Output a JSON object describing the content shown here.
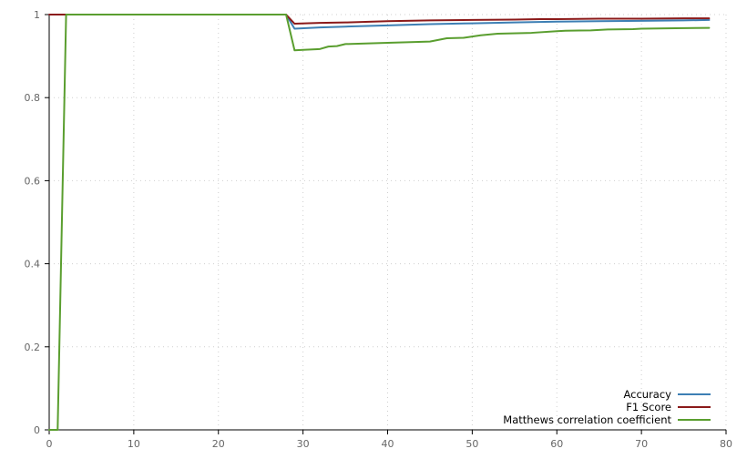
{
  "chart_data": {
    "type": "line",
    "title": "",
    "xlabel": "",
    "ylabel": "",
    "xlim": [
      0,
      80
    ],
    "ylim": [
      0,
      1
    ],
    "xticks": [
      0,
      10,
      20,
      30,
      40,
      50,
      60,
      70,
      80
    ],
    "yticks": [
      0,
      0.2,
      0.4,
      0.6,
      0.8,
      1
    ],
    "ytick_labels": [
      "0",
      "0.2",
      "0.4",
      "0.6",
      "0.8",
      "1"
    ],
    "grid": true,
    "legend_position": "bottom-right",
    "series": [
      {
        "name": "Accuracy",
        "color": "#3d7fb4",
        "points": [
          [
            0,
            1
          ],
          [
            28,
            1
          ],
          [
            29,
            0.966
          ],
          [
            32,
            0.969
          ],
          [
            35,
            0.971
          ],
          [
            40,
            0.974
          ],
          [
            45,
            0.977
          ],
          [
            50,
            0.979
          ],
          [
            55,
            0.981
          ],
          [
            60,
            0.983
          ],
          [
            65,
            0.984
          ],
          [
            70,
            0.985
          ],
          [
            75,
            0.986
          ],
          [
            78,
            0.987
          ]
        ]
      },
      {
        "name": "F1 Score",
        "color": "#8b1a1a",
        "points": [
          [
            0,
            1
          ],
          [
            28,
            1
          ],
          [
            29,
            0.978
          ],
          [
            32,
            0.98
          ],
          [
            35,
            0.981
          ],
          [
            40,
            0.984
          ],
          [
            45,
            0.986
          ],
          [
            50,
            0.987
          ],
          [
            55,
            0.988
          ],
          [
            58,
            0.989
          ],
          [
            60,
            0.989
          ],
          [
            65,
            0.99
          ],
          [
            70,
            0.99
          ],
          [
            75,
            0.991
          ],
          [
            78,
            0.991
          ]
        ]
      },
      {
        "name": "Matthews correlation coefficient",
        "color": "#5a9e2f",
        "points": [
          [
            0,
            0
          ],
          [
            1,
            0
          ],
          [
            2,
            1
          ],
          [
            28,
            1
          ],
          [
            29,
            0.914
          ],
          [
            30,
            0.915
          ],
          [
            32,
            0.917
          ],
          [
            33,
            0.923
          ],
          [
            34,
            0.924
          ],
          [
            35,
            0.929
          ],
          [
            40,
            0.932
          ],
          [
            45,
            0.935
          ],
          [
            47,
            0.943
          ],
          [
            49,
            0.944
          ],
          [
            51,
            0.95
          ],
          [
            53,
            0.954
          ],
          [
            57,
            0.956
          ],
          [
            60,
            0.96
          ],
          [
            61,
            0.961
          ],
          [
            64,
            0.962
          ],
          [
            66,
            0.964
          ],
          [
            69,
            0.965
          ],
          [
            70,
            0.966
          ],
          [
            74,
            0.967
          ],
          [
            78,
            0.968
          ]
        ]
      }
    ]
  }
}
